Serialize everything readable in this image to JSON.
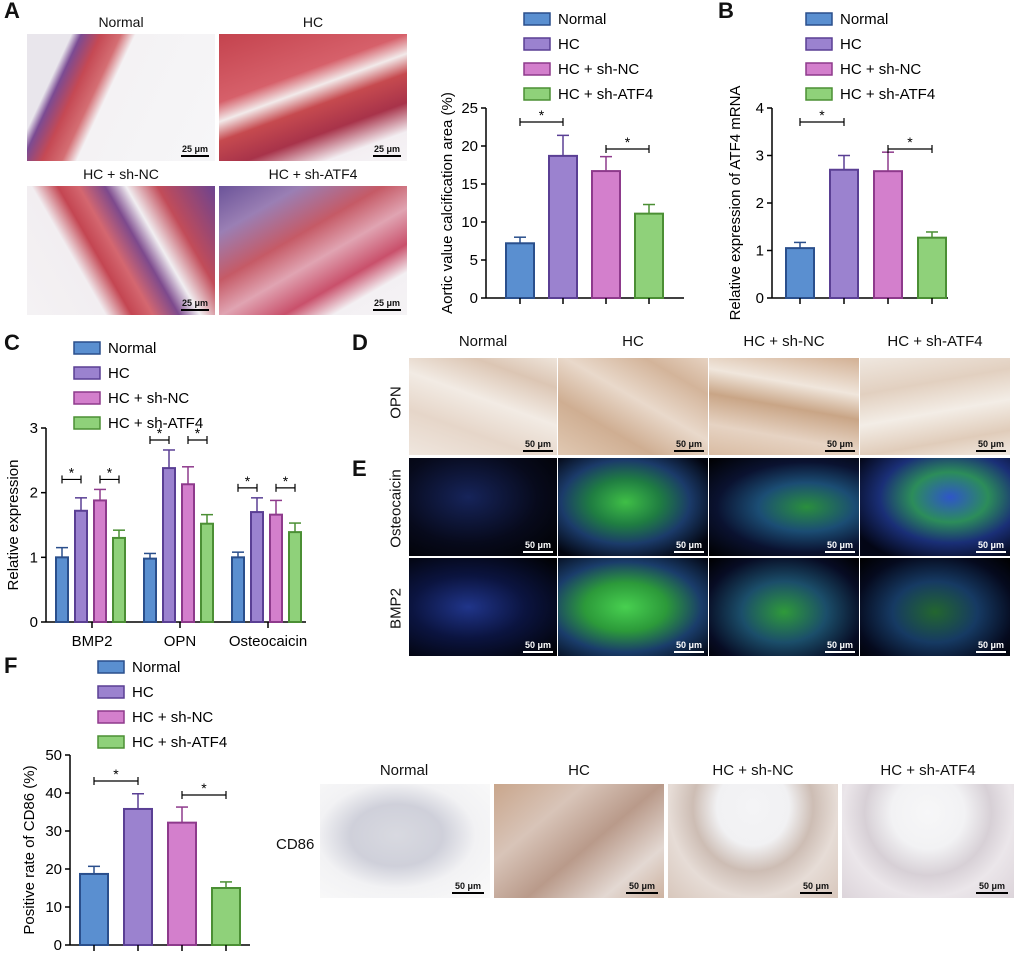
{
  "panels": {
    "A": "A",
    "B": "B",
    "C": "C",
    "D": "D",
    "E": "E",
    "F": "F"
  },
  "groups": [
    "Normal",
    "HC",
    "HC + sh-NC",
    "HC + sh-ATF4"
  ],
  "colors": {
    "normal": "#5a8fd0",
    "hc": "#9b82cf",
    "shnc": "#d37fcc",
    "shatf4": "#8fd17a",
    "normal_edge": "#2a4f8c",
    "hc_edge": "#5a3f94",
    "shnc_edge": "#8e3a8c",
    "shatf4_edge": "#4b8f34"
  },
  "sig": "*",
  "panelA": {
    "images": [
      {
        "caption": "Normal",
        "scale": "25 μm"
      },
      {
        "caption": "HC",
        "scale": "25 μm"
      },
      {
        "caption": "HC + sh-NC",
        "scale": "25 μm"
      },
      {
        "caption": "HC + sh-ATF4",
        "scale": "25 μm"
      }
    ]
  },
  "panelD": {
    "row_label": "OPN",
    "columns": [
      "Normal",
      "HC",
      "HC + sh-NC",
      "HC + sh-ATF4"
    ],
    "scale": "50 μm"
  },
  "panelE": {
    "row_labels": [
      "Osteocaicin",
      "BMP2"
    ],
    "scale": "50 μm"
  },
  "panelF_images": {
    "row_label": "CD86",
    "columns": [
      "Normal",
      "HC",
      "HC + sh-NC",
      "HC + sh-ATF4"
    ],
    "scale": "50 μm"
  },
  "chart_data": [
    {
      "id": "A-bar",
      "type": "bar",
      "ylabel": "Aortic value calcification area (%)",
      "ylim": [
        0,
        25
      ],
      "yticks": [
        "0",
        "5",
        "10",
        "15",
        "20",
        "25"
      ],
      "categories": [
        "Normal",
        "HC",
        "HC + sh-NC",
        "HC + sh-ATF4"
      ],
      "values": [
        7.2,
        18.7,
        16.7,
        11.1
      ],
      "errors": [
        0.8,
        2.7,
        1.9,
        1.2
      ],
      "legend": [
        "Normal",
        "HC",
        "HC + sh-NC",
        "HC + sh-ATF4"
      ],
      "legend_position": "top"
    },
    {
      "id": "B-bar",
      "type": "bar",
      "ylabel": "Relative expression of ATF4 mRNA",
      "ylim": [
        0,
        4
      ],
      "yticks": [
        "0",
        "1",
        "2",
        "3",
        "4"
      ],
      "categories": [
        "Normal",
        "HC",
        "HC + sh-NC",
        "HC + sh-ATF4"
      ],
      "values": [
        1.05,
        2.7,
        2.67,
        1.27
      ],
      "errors": [
        0.12,
        0.3,
        0.4,
        0.12
      ],
      "legend": [
        "Normal",
        "HC",
        "HC + sh-NC",
        "HC + sh-ATF4"
      ],
      "legend_position": "top"
    },
    {
      "id": "C-bar",
      "type": "bar",
      "ylabel": "Relative expression",
      "ylim": [
        0,
        3
      ],
      "yticks": [
        "0",
        "1",
        "2",
        "3"
      ],
      "categories": [
        "BMP2",
        "OPN",
        "Osteocaicin"
      ],
      "series": [
        {
          "name": "Normal",
          "values": [
            1.0,
            0.98,
            1.0
          ],
          "errors": [
            0.15,
            0.08,
            0.08
          ]
        },
        {
          "name": "HC",
          "values": [
            1.72,
            2.38,
            1.7
          ],
          "errors": [
            0.2,
            0.28,
            0.22
          ]
        },
        {
          "name": "HC + sh-NC",
          "values": [
            1.88,
            2.13,
            1.66
          ],
          "errors": [
            0.17,
            0.27,
            0.22
          ]
        },
        {
          "name": "HC + sh-ATF4",
          "values": [
            1.3,
            1.52,
            1.39
          ],
          "errors": [
            0.12,
            0.14,
            0.14
          ]
        }
      ],
      "legend_position": "top-left"
    },
    {
      "id": "F-bar",
      "type": "bar",
      "ylabel": "Positive rate of CD86 (%)",
      "ylim": [
        0,
        50
      ],
      "yticks": [
        "0",
        "10",
        "20",
        "30",
        "40",
        "50"
      ],
      "categories": [
        "Normal",
        "HC",
        "HC + sh-NC",
        "HC + sh-ATF4"
      ],
      "values": [
        18.7,
        35.8,
        32.2,
        15.0
      ],
      "errors": [
        2.0,
        4.0,
        4.1,
        1.6
      ],
      "legend": [
        "Normal",
        "HC",
        "HC + sh-NC",
        "HC + sh-ATF4"
      ],
      "legend_position": "top"
    }
  ]
}
